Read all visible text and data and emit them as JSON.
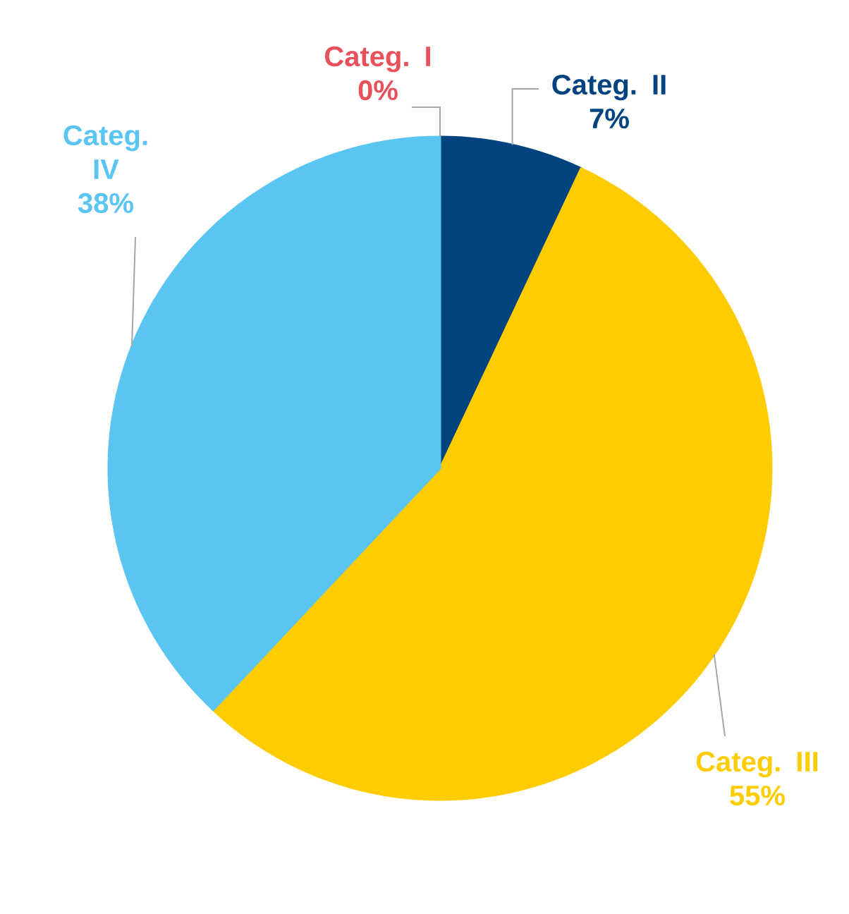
{
  "chart_data": {
    "type": "pie",
    "categories": [
      "Categ. I",
      "Categ. II",
      "Categ. III",
      "Categ. IV"
    ],
    "values": [
      0,
      7,
      55,
      38
    ],
    "value_labels": [
      "0%",
      "7%",
      "55%",
      "38%"
    ],
    "colors": [
      "#e8505b",
      "#00437f",
      "#ffcc00",
      "#5bc5f2"
    ]
  }
}
